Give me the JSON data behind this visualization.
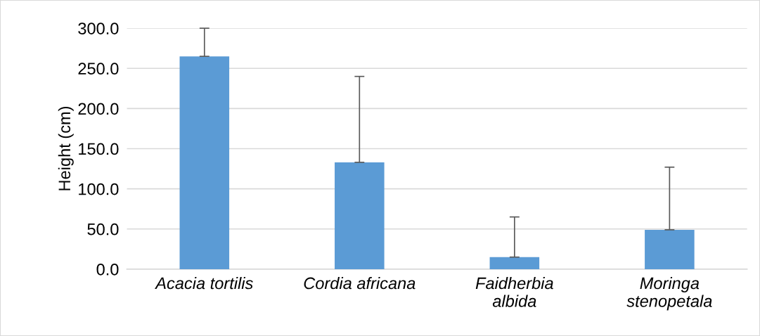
{
  "chart_data": {
    "type": "bar",
    "ylabel": "Height (cm)",
    "categories": [
      "Acacia tortilis",
      "Cordia africana",
      "Faidherbia albida",
      "Moringa stenopetala"
    ],
    "values": [
      265,
      133,
      15,
      49
    ],
    "errors": [
      [
        265,
        300
      ],
      [
        133,
        240
      ],
      [
        15,
        65
      ],
      [
        49,
        127
      ]
    ],
    "color": "#5b9bd5",
    "ylim": [
      0,
      300
    ],
    "yticks": [
      {
        "value": 0,
        "label": "0.0"
      },
      {
        "value": 50,
        "label": "50.0"
      },
      {
        "value": 100,
        "label": "100.0"
      },
      {
        "value": 150,
        "label": "150.0"
      },
      {
        "value": 200,
        "label": "200.0"
      },
      {
        "value": 250,
        "label": "250.0"
      },
      {
        "value": 300,
        "label": "300.0"
      }
    ],
    "grid": "y",
    "legend": false
  }
}
